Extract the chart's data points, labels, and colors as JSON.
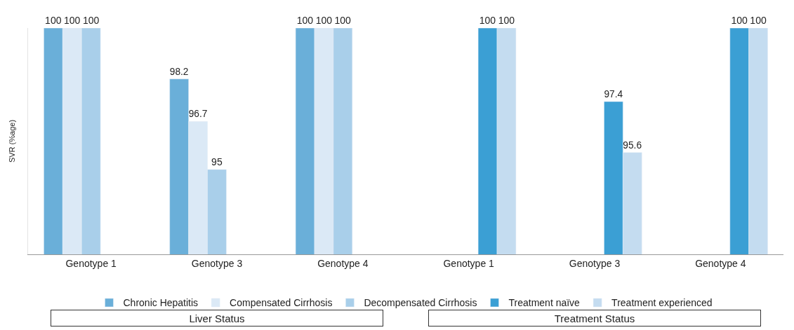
{
  "chart_data": {
    "type": "bar",
    "ylabel": "SVR (%age)",
    "categories": [
      "Genotype 1",
      "Genotype 3",
      "Genotype 4",
      "Genotype 1",
      "Genotype 3",
      "Genotype 4"
    ],
    "series": [
      {
        "name": "Chronic Hepatitis",
        "color": "#6aafd9",
        "values": [
          100,
          98.2,
          100,
          null,
          null,
          null
        ]
      },
      {
        "name": "Compensated Cirrhosis",
        "color": "#dbe9f6",
        "values": [
          100,
          96.7,
          100,
          null,
          null,
          null
        ]
      },
      {
        "name": "Decompensated Cirrhosis",
        "color": "#a9cfea",
        "values": [
          100,
          95,
          100,
          null,
          null,
          null
        ]
      },
      {
        "name": "Treatment naïve",
        "color": "#3b9fd4",
        "values": [
          null,
          null,
          null,
          100,
          97.4,
          100
        ]
      },
      {
        "name": "Treatment experienced",
        "color": "#c4dcf0",
        "values": [
          null,
          null,
          null,
          100,
          95.6,
          100
        ]
      }
    ],
    "ylim": [
      92,
      100
    ],
    "tick_labels": "x",
    "data_labels": true,
    "legend": "bottom",
    "annotations": [
      "Liver Status",
      "Treatment Status"
    ]
  }
}
